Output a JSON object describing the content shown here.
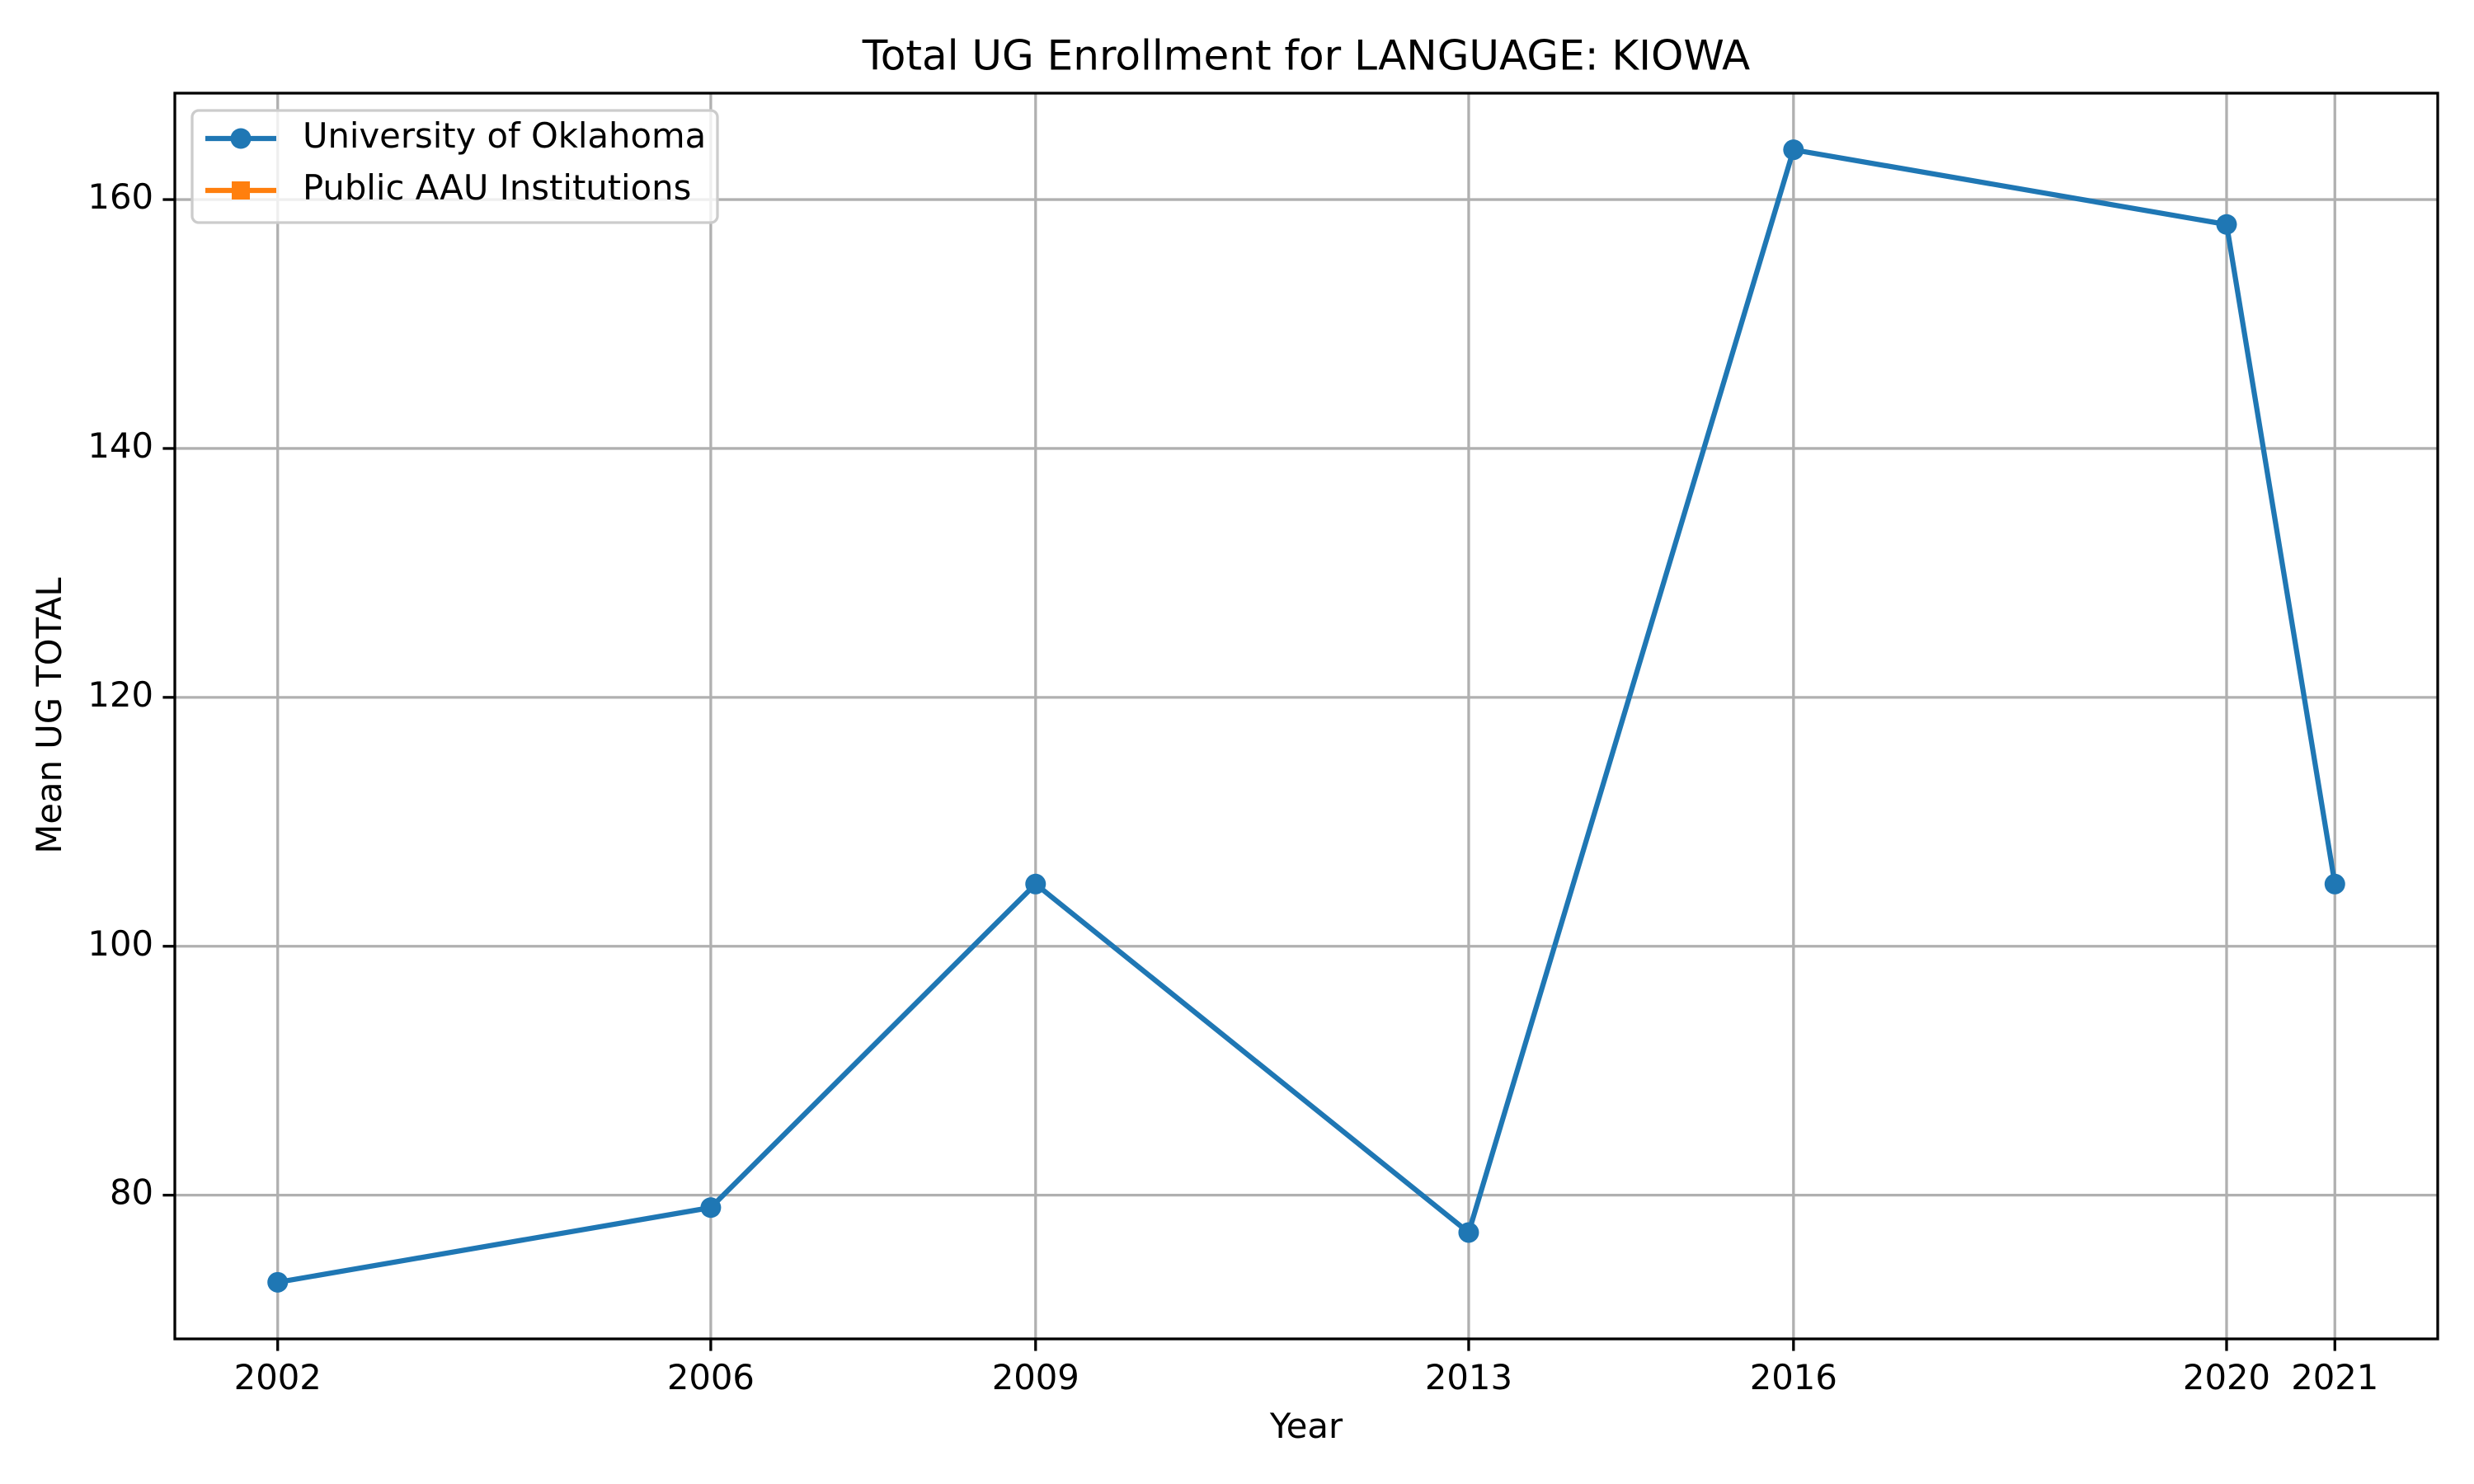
{
  "chart_data": {
    "type": "line",
    "title": "Total UG Enrollment for LANGUAGE: KIOWA",
    "xlabel": "Year",
    "ylabel": "Mean UG TOTAL",
    "x": [
      2002,
      2006,
      2009,
      2013,
      2016,
      2020,
      2021
    ],
    "series": [
      {
        "name": "University of Oklahoma",
        "color": "#1f77b4",
        "marker": "circle",
        "values": [
          73,
          79,
          105,
          77,
          164,
          158,
          105
        ]
      },
      {
        "name": "Public AAU Institutions",
        "color": "#ff7f0e",
        "marker": "square",
        "values": [
          null,
          null,
          null,
          null,
          null,
          null,
          null
        ]
      }
    ],
    "xlim": [
      2001.05,
      2021.95
    ],
    "xticks": [
      2002,
      2006,
      2009,
      2013,
      2016,
      2020,
      2021
    ],
    "ylim": [
      68.45,
      168.55
    ],
    "yticks": [
      80,
      100,
      120,
      140,
      160
    ],
    "grid": true,
    "legend": "upper left"
  }
}
